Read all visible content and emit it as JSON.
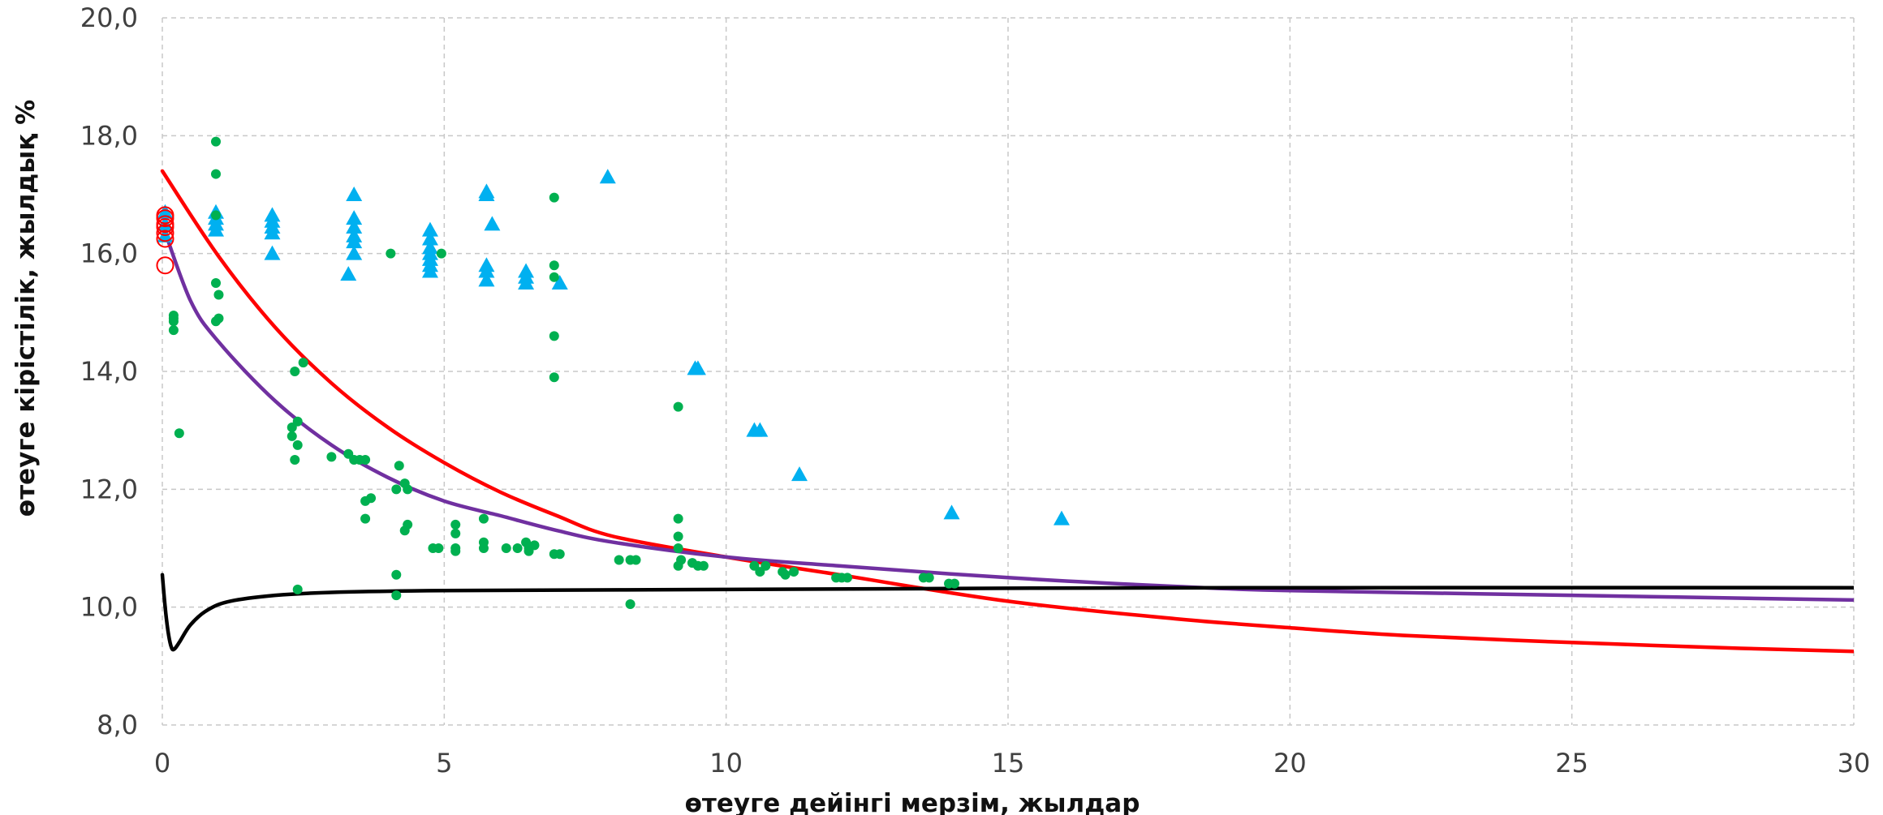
{
  "chart_data": {
    "type": "scatter",
    "title": "",
    "xlabel": "өтеуге дейінгі мерзім, жылдар",
    "ylabel": "өтеуге кірістілік, жылдық %",
    "xlim": [
      0,
      30
    ],
    "ylim": [
      8,
      20
    ],
    "x_ticks": [
      0,
      5,
      10,
      15,
      20,
      25,
      30
    ],
    "y_ticks": [
      8,
      10,
      12,
      14,
      16,
      18,
      20
    ],
    "x_tick_labels": [
      "0",
      "5",
      "10",
      "15",
      "20",
      "25",
      "30"
    ],
    "y_tick_labels": [
      "8,0",
      "10,0",
      "12,0",
      "14,0",
      "16,0",
      "18,0",
      "20,0"
    ],
    "grid": true,
    "legend": "none",
    "series": [
      {
        "marker": "triangle",
        "color": "#00b0f0",
        "points": [
          [
            0.05,
            16.7
          ],
          [
            0.05,
            16.5
          ],
          [
            0.05,
            16.3
          ],
          [
            0.95,
            16.7
          ],
          [
            0.95,
            16.6
          ],
          [
            0.95,
            16.5
          ],
          [
            0.95,
            16.4
          ],
          [
            1.95,
            16.65
          ],
          [
            1.95,
            16.55
          ],
          [
            1.95,
            16.45
          ],
          [
            1.95,
            16.35
          ],
          [
            1.95,
            16.0
          ],
          [
            3.3,
            15.65
          ],
          [
            3.4,
            17.0
          ],
          [
            3.4,
            16.6
          ],
          [
            3.4,
            16.45
          ],
          [
            3.4,
            16.3
          ],
          [
            3.4,
            16.2
          ],
          [
            3.4,
            16.0
          ],
          [
            4.75,
            16.4
          ],
          [
            4.75,
            16.25
          ],
          [
            4.75,
            16.1
          ],
          [
            4.75,
            16.0
          ],
          [
            4.75,
            15.9
          ],
          [
            4.75,
            15.8
          ],
          [
            4.75,
            15.7
          ],
          [
            5.75,
            17.05
          ],
          [
            5.75,
            17.0
          ],
          [
            5.75,
            15.8
          ],
          [
            5.75,
            15.7
          ],
          [
            5.75,
            15.55
          ],
          [
            5.85,
            16.5
          ],
          [
            6.45,
            15.7
          ],
          [
            6.45,
            15.6
          ],
          [
            6.45,
            15.5
          ],
          [
            7.05,
            15.5
          ],
          [
            7.9,
            17.3
          ],
          [
            9.45,
            14.05
          ],
          [
            9.5,
            14.05
          ],
          [
            10.5,
            13.0
          ],
          [
            10.6,
            13.0
          ],
          [
            11.3,
            12.25
          ],
          [
            14.0,
            11.6
          ],
          [
            15.95,
            11.5
          ]
        ]
      },
      {
        "marker": "circle",
        "color": "#00b050",
        "points": [
          [
            0.2,
            14.95
          ],
          [
            0.2,
            14.9
          ],
          [
            0.2,
            14.85
          ],
          [
            0.2,
            14.7
          ],
          [
            0.3,
            12.95
          ],
          [
            0.95,
            17.9
          ],
          [
            0.95,
            17.35
          ],
          [
            0.95,
            16.65
          ],
          [
            0.95,
            15.5
          ],
          [
            0.95,
            14.85
          ],
          [
            1.0,
            15.3
          ],
          [
            1.0,
            14.9
          ],
          [
            2.3,
            13.05
          ],
          [
            2.3,
            12.9
          ],
          [
            2.35,
            14.0
          ],
          [
            2.35,
            12.5
          ],
          [
            2.4,
            13.15
          ],
          [
            2.4,
            12.75
          ],
          [
            2.4,
            10.3
          ],
          [
            2.5,
            14.15
          ],
          [
            3.0,
            12.55
          ],
          [
            3.3,
            12.6
          ],
          [
            3.4,
            12.5
          ],
          [
            3.5,
            12.5
          ],
          [
            3.6,
            12.5
          ],
          [
            3.6,
            11.8
          ],
          [
            3.6,
            11.5
          ],
          [
            3.7,
            11.85
          ],
          [
            4.05,
            16.0
          ],
          [
            4.15,
            12.0
          ],
          [
            4.15,
            10.55
          ],
          [
            4.15,
            10.2
          ],
          [
            4.2,
            12.4
          ],
          [
            4.3,
            12.1
          ],
          [
            4.3,
            11.3
          ],
          [
            4.35,
            12.0
          ],
          [
            4.35,
            11.4
          ],
          [
            4.8,
            11.0
          ],
          [
            4.9,
            11.0
          ],
          [
            4.95,
            16.0
          ],
          [
            5.2,
            11.4
          ],
          [
            5.2,
            11.25
          ],
          [
            5.2,
            11.0
          ],
          [
            5.2,
            10.95
          ],
          [
            5.7,
            11.5
          ],
          [
            5.7,
            11.1
          ],
          [
            5.7,
            11.0
          ],
          [
            6.1,
            11.0
          ],
          [
            6.3,
            11.0
          ],
          [
            6.45,
            11.1
          ],
          [
            6.5,
            11.0
          ],
          [
            6.5,
            10.95
          ],
          [
            6.6,
            11.05
          ],
          [
            6.95,
            16.95
          ],
          [
            6.95,
            15.8
          ],
          [
            6.95,
            15.6
          ],
          [
            6.95,
            14.6
          ],
          [
            6.95,
            13.9
          ],
          [
            6.95,
            10.9
          ],
          [
            7.05,
            10.9
          ],
          [
            8.1,
            10.8
          ],
          [
            8.3,
            10.8
          ],
          [
            8.3,
            10.05
          ],
          [
            8.4,
            10.8
          ],
          [
            9.15,
            13.4
          ],
          [
            9.15,
            11.5
          ],
          [
            9.15,
            11.2
          ],
          [
            9.15,
            11.0
          ],
          [
            9.15,
            10.7
          ],
          [
            9.2,
            10.8
          ],
          [
            9.4,
            10.75
          ],
          [
            9.5,
            10.7
          ],
          [
            9.6,
            10.7
          ],
          [
            10.5,
            10.7
          ],
          [
            10.6,
            10.6
          ],
          [
            10.7,
            10.7
          ],
          [
            11.0,
            10.6
          ],
          [
            11.05,
            10.55
          ],
          [
            11.2,
            10.6
          ],
          [
            11.95,
            10.5
          ],
          [
            12.05,
            10.5
          ],
          [
            12.15,
            10.5
          ],
          [
            13.5,
            10.5
          ],
          [
            13.6,
            10.5
          ],
          [
            13.95,
            10.4
          ],
          [
            14.05,
            10.4
          ]
        ]
      },
      {
        "marker": "open-circle",
        "color": "#ff0000",
        "points": [
          [
            0.05,
            16.65
          ],
          [
            0.05,
            16.6
          ],
          [
            0.05,
            16.5
          ],
          [
            0.05,
            16.45
          ],
          [
            0.05,
            16.35
          ],
          [
            0.05,
            16.25
          ],
          [
            0.05,
            15.8
          ]
        ]
      }
    ],
    "curves": [
      {
        "color": "#ff0000",
        "points": [
          [
            0,
            17.4
          ],
          [
            1,
            15.95
          ],
          [
            2,
            14.75
          ],
          [
            3,
            13.8
          ],
          [
            4,
            13.05
          ],
          [
            5,
            12.45
          ],
          [
            6,
            11.95
          ],
          [
            7,
            11.55
          ],
          [
            8,
            11.2
          ],
          [
            10,
            10.85
          ],
          [
            12,
            10.55
          ],
          [
            15,
            10.1
          ],
          [
            18,
            9.8
          ],
          [
            20,
            9.65
          ],
          [
            22,
            9.52
          ],
          [
            25,
            9.4
          ],
          [
            28,
            9.3
          ],
          [
            30,
            9.25
          ]
        ]
      },
      {
        "color": "#7030a0",
        "points": [
          [
            0,
            16.5
          ],
          [
            0.5,
            15.2
          ],
          [
            1,
            14.5
          ],
          [
            2,
            13.5
          ],
          [
            3,
            12.75
          ],
          [
            4,
            12.2
          ],
          [
            5,
            11.8
          ],
          [
            6,
            11.55
          ],
          [
            7,
            11.3
          ],
          [
            8,
            11.1
          ],
          [
            10,
            10.85
          ],
          [
            12,
            10.7
          ],
          [
            15,
            10.5
          ],
          [
            18,
            10.35
          ],
          [
            20,
            10.28
          ],
          [
            25,
            10.2
          ],
          [
            30,
            10.12
          ]
        ]
      },
      {
        "color": "#000000",
        "points": [
          [
            0,
            10.55
          ],
          [
            0.05,
            10.0
          ],
          [
            0.1,
            9.6
          ],
          [
            0.15,
            9.35
          ],
          [
            0.2,
            9.28
          ],
          [
            0.3,
            9.4
          ],
          [
            0.5,
            9.7
          ],
          [
            0.8,
            9.95
          ],
          [
            1.2,
            10.1
          ],
          [
            2,
            10.2
          ],
          [
            3,
            10.25
          ],
          [
            5,
            10.28
          ],
          [
            10,
            10.3
          ],
          [
            15,
            10.32
          ],
          [
            20,
            10.33
          ],
          [
            30,
            10.33
          ]
        ]
      }
    ]
  }
}
